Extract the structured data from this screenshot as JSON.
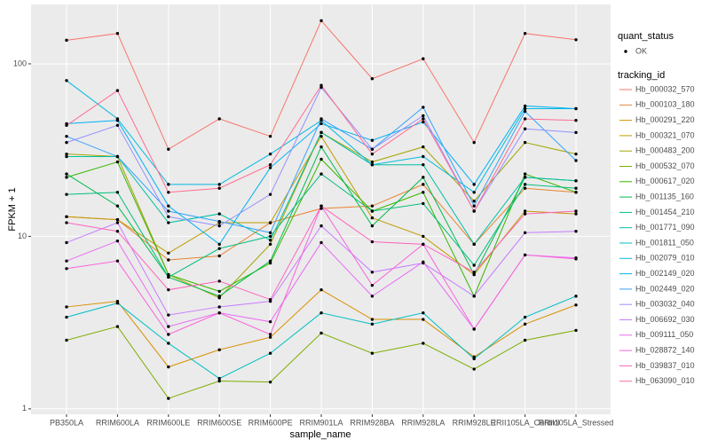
{
  "chart_data": {
    "type": "line",
    "y_label": "FPKM + 1",
    "x_label": "sample_name",
    "log_y": true,
    "grid": true,
    "point_legend_title": "quant_status",
    "point_legend_label": "OK",
    "legend_title": "tracking_id",
    "legend_position": "right",
    "point_color": "#000000",
    "categories": [
      "PB350LA",
      "RRIM600LA",
      "RRIM600LE",
      "RRIM600SE",
      "RRIM600PE",
      "RRIM901LA",
      "RRIM928BA",
      "RRIM928LA",
      "RRIM928LE",
      "RRII105LA_Control",
      "RRII105LA_Stressed"
    ],
    "ylim": [
      0.93,
      221
    ],
    "yticks": [
      1,
      10,
      100
    ],
    "series": [
      {
        "name": "Hb_000032_570",
        "color": "#F8766D",
        "values": [
          137,
          150,
          32,
          48,
          38,
          178,
          82,
          107,
          35,
          150,
          138
        ]
      },
      {
        "name": "Hb_000103_180",
        "color": "#EA8331",
        "values": [
          13,
          12.5,
          7.3,
          7.7,
          12,
          14.5,
          15,
          20,
          9,
          19,
          18
        ]
      },
      {
        "name": "Hb_000291_220",
        "color": "#D89000",
        "values": [
          3.9,
          4.2,
          1.75,
          2.2,
          2.6,
          4.9,
          3.3,
          3.3,
          2.0,
          3.1,
          4.0
        ]
      },
      {
        "name": "Hb_000321_070",
        "color": "#C09B00",
        "values": [
          13,
          12.5,
          8,
          12,
          12,
          38,
          12.8,
          10,
          6,
          14,
          13.5
        ]
      },
      {
        "name": "Hb_000483_200",
        "color": "#A3A500",
        "values": [
          30,
          29,
          6,
          4.4,
          9,
          40,
          27,
          33,
          16,
          35,
          30
        ]
      },
      {
        "name": "Hb_000532_070",
        "color": "#7CAE00",
        "values": [
          2.5,
          3.0,
          1.15,
          1.45,
          1.43,
          2.75,
          2.1,
          2.4,
          1.7,
          2.5,
          2.85
        ]
      },
      {
        "name": "Hb_000617_020",
        "color": "#39B600",
        "values": [
          22,
          27,
          6,
          4.8,
          7,
          28,
          14,
          18,
          4.5,
          23,
          18
        ]
      },
      {
        "name": "Hb_001135_160",
        "color": "#00BB4E",
        "values": [
          23,
          15,
          5.8,
          4.5,
          7.2,
          33,
          11.5,
          22,
          6,
          22,
          21
        ]
      },
      {
        "name": "Hb_001454_210",
        "color": "#00BF7D",
        "values": [
          17.5,
          18,
          5.8,
          8.5,
          10,
          23,
          14,
          15.5,
          6.8,
          20,
          19
        ]
      },
      {
        "name": "Hb_001771_090",
        "color": "#00C1A3",
        "values": [
          29,
          29,
          12,
          13.5,
          9.5,
          40,
          26,
          26,
          9,
          22,
          21
        ]
      },
      {
        "name": "Hb_001811_050",
        "color": "#00BFC4",
        "values": [
          3.4,
          4.1,
          2.4,
          1.5,
          2.1,
          3.6,
          3.1,
          3.6,
          1.95,
          3.4,
          4.5
        ]
      },
      {
        "name": "Hb_002079_010",
        "color": "#00BAE0",
        "values": [
          80,
          48,
          20,
          20,
          30,
          47,
          26,
          29,
          18,
          55,
          55
        ]
      },
      {
        "name": "Hb_002149_020",
        "color": "#00B0F6",
        "values": [
          45,
          47,
          15,
          9,
          25,
          45,
          36,
          46,
          20,
          57,
          55
        ]
      },
      {
        "name": "Hb_002449_020",
        "color": "#35A2FF",
        "values": [
          38,
          29,
          14,
          12.2,
          10.5,
          48,
          32,
          56,
          15,
          53,
          27.5
        ]
      },
      {
        "name": "Hb_003032_040",
        "color": "#9590FF",
        "values": [
          35,
          44,
          13,
          11.5,
          17.5,
          73,
          32,
          50,
          14,
          42,
          40
        ]
      },
      {
        "name": "Hb_006692_030",
        "color": "#C77CFF",
        "values": [
          9.2,
          12,
          3.5,
          3.9,
          4.2,
          11.5,
          6.2,
          7,
          4.5,
          10.5,
          10.7
        ]
      },
      {
        "name": "Hb_009111_050",
        "color": "#E76BF3",
        "values": [
          7.2,
          9.4,
          3.0,
          3.6,
          3.2,
          9.2,
          4.5,
          7.1,
          2.9,
          7.8,
          7.5
        ]
      },
      {
        "name": "Hb_028872_140",
        "color": "#FA62DB",
        "values": [
          6.5,
          7.2,
          2.7,
          3.6,
          2.7,
          15,
          5.2,
          9,
          2.9,
          7.8,
          7.4
        ]
      },
      {
        "name": "Hb_039837_010",
        "color": "#FF62BC",
        "values": [
          12,
          10.7,
          4.9,
          5.5,
          4.3,
          15,
          9.3,
          9,
          6.2,
          13.5,
          14
        ]
      },
      {
        "name": "Hb_063090_010",
        "color": "#FF6C91",
        "values": [
          44,
          70,
          18,
          19,
          26,
          75,
          30,
          48,
          14,
          48,
          47
        ]
      }
    ]
  }
}
